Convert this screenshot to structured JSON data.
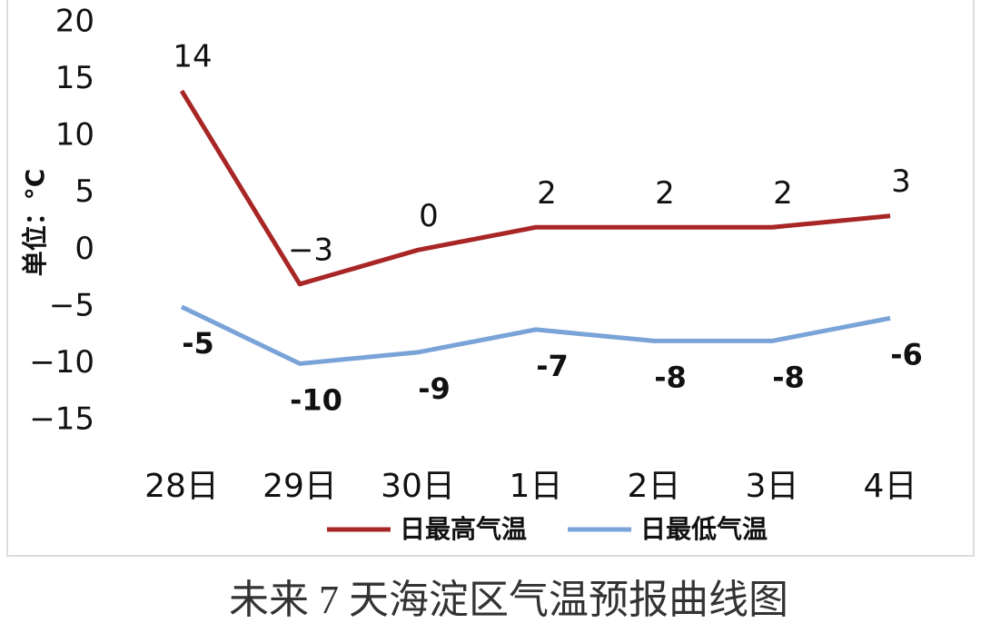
{
  "chart_data": {
    "type": "line",
    "caption": "未来 7 天海淀区气温预报曲线图",
    "y_label": "单位：°C",
    "categories": [
      "28日",
      "29日",
      "30日",
      "1日",
      "2日",
      "3日",
      "4日"
    ],
    "series": [
      {
        "name": "日最高气温",
        "color": "#a82626",
        "values": [
          14,
          -3,
          0,
          2,
          2,
          2,
          3
        ],
        "value_labels": [
          "14",
          "−3",
          "0",
          "2",
          "2",
          "2",
          "3"
        ]
      },
      {
        "name": "日最低气温",
        "color": "#7aa3d8",
        "values": [
          -5,
          -10,
          -9,
          -7,
          -8,
          -8,
          -6
        ]
      }
    ],
    "ylim": [
      -15,
      20
    ],
    "yticks": [
      {
        "value": -15,
        "label": "−15"
      },
      {
        "value": -10,
        "label": "−10"
      },
      {
        "value": -5,
        "label": "−5"
      },
      0,
      5,
      10,
      15,
      20
    ],
    "grid": false
  }
}
